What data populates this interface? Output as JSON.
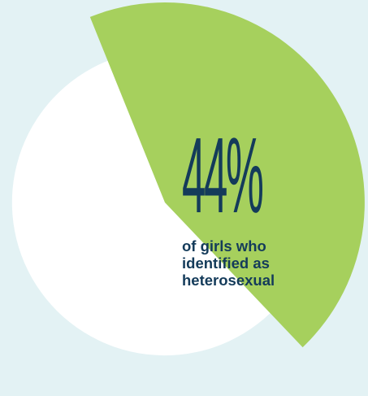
{
  "colors": {
    "background": "#e3f2f4",
    "remainder": "#ffffff",
    "highlight": "#a6d05d",
    "text": "#143b5a"
  },
  "chart_data": {
    "type": "pie",
    "slices": [
      {
        "label": "of girls who identified as heterosexual",
        "value": 44
      },
      {
        "label": "",
        "value": 56
      }
    ],
    "value_label": "44%",
    "caption_lines": [
      "of girls who",
      "identified as",
      "heterosexual"
    ]
  }
}
